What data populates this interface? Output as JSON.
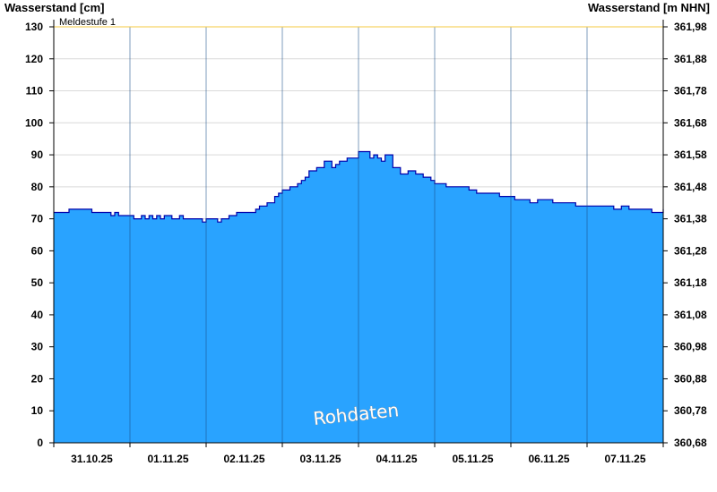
{
  "chart_data": {
    "type": "area",
    "ylabel_left": "Wasserstand [cm]",
    "ylabel_right": "Wasserstand [m NHN]",
    "ylim": [
      0,
      130
    ],
    "yticks_left": [
      "0",
      "10",
      "20",
      "30",
      "40",
      "50",
      "60",
      "70",
      "80",
      "90",
      "100",
      "110",
      "120",
      "130"
    ],
    "yticks_right": [
      "360,68",
      "360,78",
      "360,88",
      "360,98",
      "361,08",
      "361,18",
      "361,28",
      "361,38",
      "361,48",
      "361,58",
      "361,68",
      "361,78",
      "361,88",
      "361,98"
    ],
    "xlim": [
      0,
      8
    ],
    "day_labels": [
      "31.10.25",
      "01.11.25",
      "02.11.25",
      "03.11.25",
      "04.11.25",
      "05.11.25",
      "06.11.25",
      "07.11.25"
    ],
    "threshold": {
      "label": "Meldestufe 1",
      "value": 130,
      "color": "#f5c842"
    },
    "watermark": "Rohdaten",
    "fill_color": "#29a3ff",
    "line_color": "#0000aa",
    "series": [
      {
        "x": [
          0.0,
          0.1,
          0.2,
          0.5,
          0.7,
          0.75,
          0.8,
          0.85,
          0.9,
          1.0,
          1.05,
          1.15,
          1.2,
          1.25,
          1.3,
          1.35,
          1.4,
          1.45,
          1.55,
          1.6,
          1.65,
          1.7,
          1.75,
          1.8,
          1.9,
          1.95,
          2.0,
          2.1,
          2.15,
          2.2,
          2.3,
          2.4,
          2.45,
          2.55,
          2.65,
          2.7,
          2.8,
          2.9,
          2.95,
          3.0,
          3.1,
          3.2,
          3.25,
          3.3,
          3.35,
          3.45,
          3.55,
          3.65,
          3.7,
          3.75,
          3.85,
          3.95,
          4.0,
          4.05,
          4.15,
          4.2,
          4.25,
          4.3,
          4.35,
          4.45,
          4.55,
          4.6,
          4.65,
          4.75,
          4.85,
          4.95,
          5.0,
          5.05,
          5.15,
          5.25,
          5.35,
          5.45,
          5.55,
          5.65,
          5.75,
          5.85,
          5.95,
          6.05,
          6.15,
          6.2,
          6.25,
          6.35,
          6.45,
          6.5,
          6.55,
          6.65,
          6.75,
          6.85,
          6.95,
          7.05,
          7.15,
          7.25,
          7.3,
          7.35,
          7.45,
          7.55,
          7.65,
          7.75,
          7.85,
          7.95,
          8.0
        ],
        "y": [
          72,
          72,
          73,
          72,
          72,
          71,
          72,
          71,
          71,
          71,
          70,
          71,
          70,
          71,
          70,
          71,
          70,
          71,
          70,
          70,
          71,
          70,
          70,
          70,
          70,
          69,
          70,
          70,
          69,
          70,
          71,
          72,
          72,
          72,
          73,
          74,
          75,
          77,
          78,
          79,
          80,
          81,
          82,
          83,
          85,
          86,
          88,
          86,
          87,
          88,
          89,
          89,
          91,
          91,
          89,
          90,
          89,
          88,
          90,
          86,
          84,
          84,
          85,
          84,
          83,
          82,
          81,
          81,
          80,
          80,
          80,
          79,
          78,
          78,
          78,
          77,
          77,
          76,
          76,
          76,
          75,
          76,
          76,
          76,
          75,
          75,
          75,
          74,
          74,
          74,
          74,
          74,
          74,
          73,
          74,
          73,
          73,
          73,
          72,
          72,
          73
        ]
      }
    ]
  }
}
